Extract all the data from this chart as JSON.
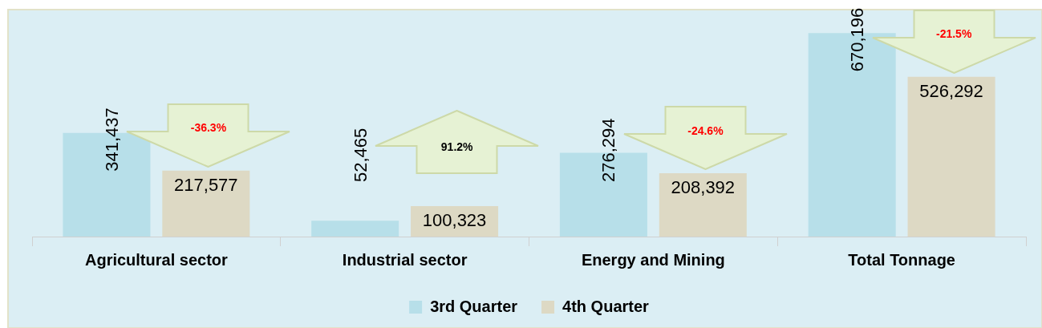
{
  "chart_data": {
    "type": "bar",
    "categories": [
      "Agricultural sector",
      "Industrial sector",
      "Energy and Mining",
      "Total Tonnage"
    ],
    "series": [
      {
        "name": "3rd Quarter",
        "color": "#b7dfe9",
        "values": [
          341437,
          52465,
          276294,
          670196
        ],
        "value_labels": [
          "341,437",
          "52,465",
          "276,294",
          "670,196"
        ]
      },
      {
        "name": "4th Quarter",
        "color": "#ddd9c4",
        "values": [
          217577,
          100323,
          208392,
          526292
        ],
        "value_labels": [
          "217,577",
          "100,323",
          "208,392",
          "526,292"
        ]
      }
    ],
    "legend": "bottom",
    "annotations": [
      "-36.3%",
      "91.2%",
      "-24.6%",
      "-21.5%"
    ]
  }
}
